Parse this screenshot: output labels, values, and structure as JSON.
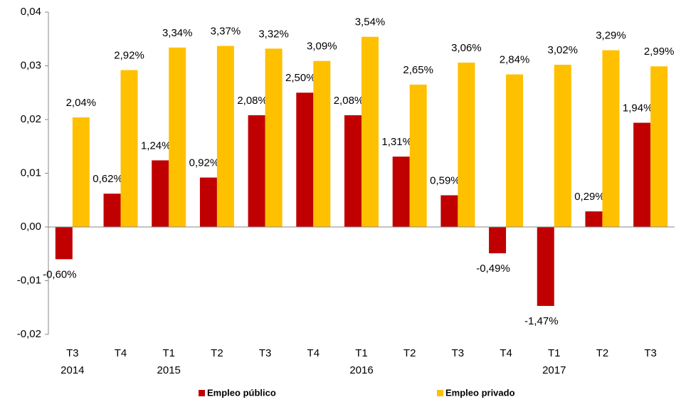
{
  "chart_data": {
    "type": "bar",
    "categories": [
      "T3",
      "T4",
      "T1",
      "T2",
      "T3",
      "T4",
      "T1",
      "T2",
      "T3",
      "T4",
      "T1",
      "T2",
      "T3"
    ],
    "year_labels": [
      "2014",
      null,
      "2015",
      null,
      null,
      null,
      "2016",
      null,
      null,
      null,
      "2017",
      null,
      null
    ],
    "series": [
      {
        "name": "Empleo público",
        "color": "#c00000",
        "values": [
          -0.006,
          0.0062,
          0.0124,
          0.0092,
          0.0208,
          0.025,
          0.0208,
          0.0131,
          0.0059,
          -0.0049,
          -0.0147,
          0.0029,
          0.0194
        ],
        "value_labels": [
          "-0,60%",
          "0,62%",
          "1,24%",
          "0,92%",
          "2,08%",
          "2,50%",
          "2,08%",
          "1,31%",
          "0,59%",
          "-0,49%",
          "-1,47%",
          "0,29%",
          "1,94%"
        ]
      },
      {
        "name": "Empleo privado",
        "color": "#ffc000",
        "values": [
          0.0204,
          0.0292,
          0.0334,
          0.0337,
          0.0332,
          0.0309,
          0.0354,
          0.0265,
          0.0306,
          0.0284,
          0.0302,
          0.0329,
          0.0299
        ],
        "value_labels": [
          "2,04%",
          "2,92%",
          "3,34%",
          "3,37%",
          "3,32%",
          "3,09%",
          "3,54%",
          "2,65%",
          "3,06%",
          "2,84%",
          "3,02%",
          "3,29%",
          "2,99%"
        ]
      }
    ],
    "ylim": [
      -0.02,
      0.04
    ],
    "yticks": [
      {
        "value": -0.02,
        "label": "-0,02"
      },
      {
        "value": -0.01,
        "label": "-0,01"
      },
      {
        "value": 0,
        "label": "0,00"
      },
      {
        "value": 0.01,
        "label": "0,01"
      },
      {
        "value": 0.02,
        "label": "0,02"
      },
      {
        "value": 0.03,
        "label": "0,03"
      },
      {
        "value": 0.04,
        "label": "0,04"
      }
    ],
    "grid": false,
    "legend": "bottom"
  }
}
